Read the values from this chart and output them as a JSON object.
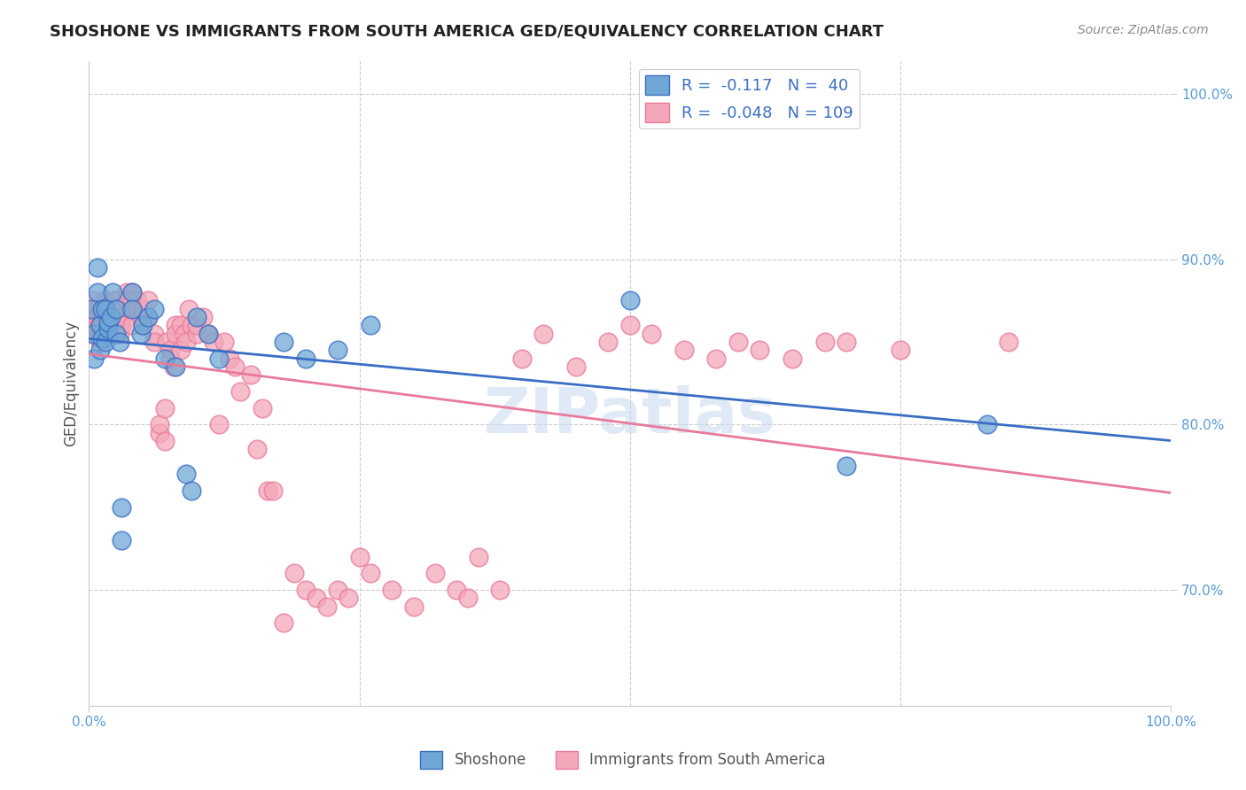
{
  "title": "SHOSHONE VS IMMIGRANTS FROM SOUTH AMERICA GED/EQUIVALENCY CORRELATION CHART",
  "source": "Source: ZipAtlas.com",
  "xlabel": "",
  "ylabel": "GED/Equivalency",
  "xlim": [
    0,
    1
  ],
  "ylim": [
    0.63,
    1.02
  ],
  "yticks": [
    0.7,
    0.8,
    0.9,
    1.0
  ],
  "ytick_labels": [
    "70.0%",
    "80.0%",
    "90.0%",
    "100.0%"
  ],
  "xticks": [
    0.0,
    0.25,
    0.5,
    0.75,
    1.0
  ],
  "xtick_labels": [
    "0.0%",
    "",
    "",
    "",
    "100.0%"
  ],
  "legend_R1": "-0.117",
  "legend_N1": "40",
  "legend_R2": "-0.048",
  "legend_N2": "109",
  "blue_color": "#6fa8d6",
  "pink_color": "#f4a7b9",
  "blue_line_color": "#3a6ec4",
  "pink_line_color": "#e87a9a",
  "watermark": "ZIPatlas",
  "background_color": "#ffffff",
  "shoshone_x": [
    0.002,
    0.005,
    0.005,
    0.008,
    0.008,
    0.01,
    0.01,
    0.012,
    0.012,
    0.015,
    0.015,
    0.018,
    0.018,
    0.02,
    0.022,
    0.025,
    0.025,
    0.028,
    0.03,
    0.03,
    0.04,
    0.04,
    0.048,
    0.05,
    0.055,
    0.06,
    0.07,
    0.08,
    0.09,
    0.095,
    0.1,
    0.11,
    0.12,
    0.18,
    0.2,
    0.23,
    0.26,
    0.5,
    0.7,
    0.83
  ],
  "shoshone_y": [
    0.87,
    0.855,
    0.84,
    0.88,
    0.895,
    0.86,
    0.845,
    0.852,
    0.87,
    0.85,
    0.87,
    0.858,
    0.862,
    0.865,
    0.88,
    0.855,
    0.87,
    0.85,
    0.75,
    0.73,
    0.88,
    0.87,
    0.855,
    0.86,
    0.865,
    0.87,
    0.84,
    0.835,
    0.77,
    0.76,
    0.865,
    0.855,
    0.84,
    0.85,
    0.84,
    0.845,
    0.86,
    0.875,
    0.775,
    0.8
  ],
  "pink_x": [
    0.002,
    0.003,
    0.004,
    0.005,
    0.005,
    0.006,
    0.007,
    0.008,
    0.008,
    0.01,
    0.01,
    0.01,
    0.012,
    0.012,
    0.013,
    0.015,
    0.015,
    0.015,
    0.018,
    0.018,
    0.02,
    0.02,
    0.022,
    0.022,
    0.025,
    0.025,
    0.025,
    0.028,
    0.028,
    0.03,
    0.03,
    0.03,
    0.035,
    0.035,
    0.038,
    0.04,
    0.04,
    0.04,
    0.045,
    0.045,
    0.048,
    0.05,
    0.05,
    0.055,
    0.055,
    0.06,
    0.06,
    0.065,
    0.065,
    0.07,
    0.07,
    0.072,
    0.075,
    0.075,
    0.078,
    0.08,
    0.08,
    0.085,
    0.085,
    0.088,
    0.09,
    0.092,
    0.095,
    0.1,
    0.1,
    0.105,
    0.11,
    0.115,
    0.12,
    0.125,
    0.13,
    0.135,
    0.14,
    0.15,
    0.155,
    0.16,
    0.165,
    0.17,
    0.18,
    0.19,
    0.2,
    0.21,
    0.22,
    0.23,
    0.24,
    0.25,
    0.26,
    0.28,
    0.3,
    0.32,
    0.34,
    0.35,
    0.36,
    0.38,
    0.4,
    0.42,
    0.45,
    0.48,
    0.5,
    0.52,
    0.55,
    0.58,
    0.6,
    0.62,
    0.65,
    0.68,
    0.7,
    0.75,
    0.85
  ],
  "pink_y": [
    0.855,
    0.86,
    0.87,
    0.875,
    0.865,
    0.86,
    0.858,
    0.87,
    0.865,
    0.855,
    0.86,
    0.85,
    0.865,
    0.87,
    0.86,
    0.875,
    0.87,
    0.865,
    0.855,
    0.86,
    0.855,
    0.87,
    0.865,
    0.86,
    0.875,
    0.865,
    0.87,
    0.86,
    0.855,
    0.87,
    0.865,
    0.86,
    0.88,
    0.875,
    0.87,
    0.88,
    0.875,
    0.86,
    0.875,
    0.87,
    0.865,
    0.87,
    0.86,
    0.875,
    0.865,
    0.855,
    0.85,
    0.795,
    0.8,
    0.81,
    0.79,
    0.85,
    0.845,
    0.84,
    0.835,
    0.86,
    0.855,
    0.86,
    0.845,
    0.855,
    0.85,
    0.87,
    0.86,
    0.855,
    0.86,
    0.865,
    0.855,
    0.85,
    0.8,
    0.85,
    0.84,
    0.835,
    0.82,
    0.83,
    0.785,
    0.81,
    0.76,
    0.76,
    0.68,
    0.71,
    0.7,
    0.695,
    0.69,
    0.7,
    0.695,
    0.72,
    0.71,
    0.7,
    0.69,
    0.71,
    0.7,
    0.695,
    0.72,
    0.7,
    0.84,
    0.855,
    0.835,
    0.85,
    0.86,
    0.855,
    0.845,
    0.84,
    0.85,
    0.845,
    0.84,
    0.85,
    0.85,
    0.845,
    0.85
  ]
}
